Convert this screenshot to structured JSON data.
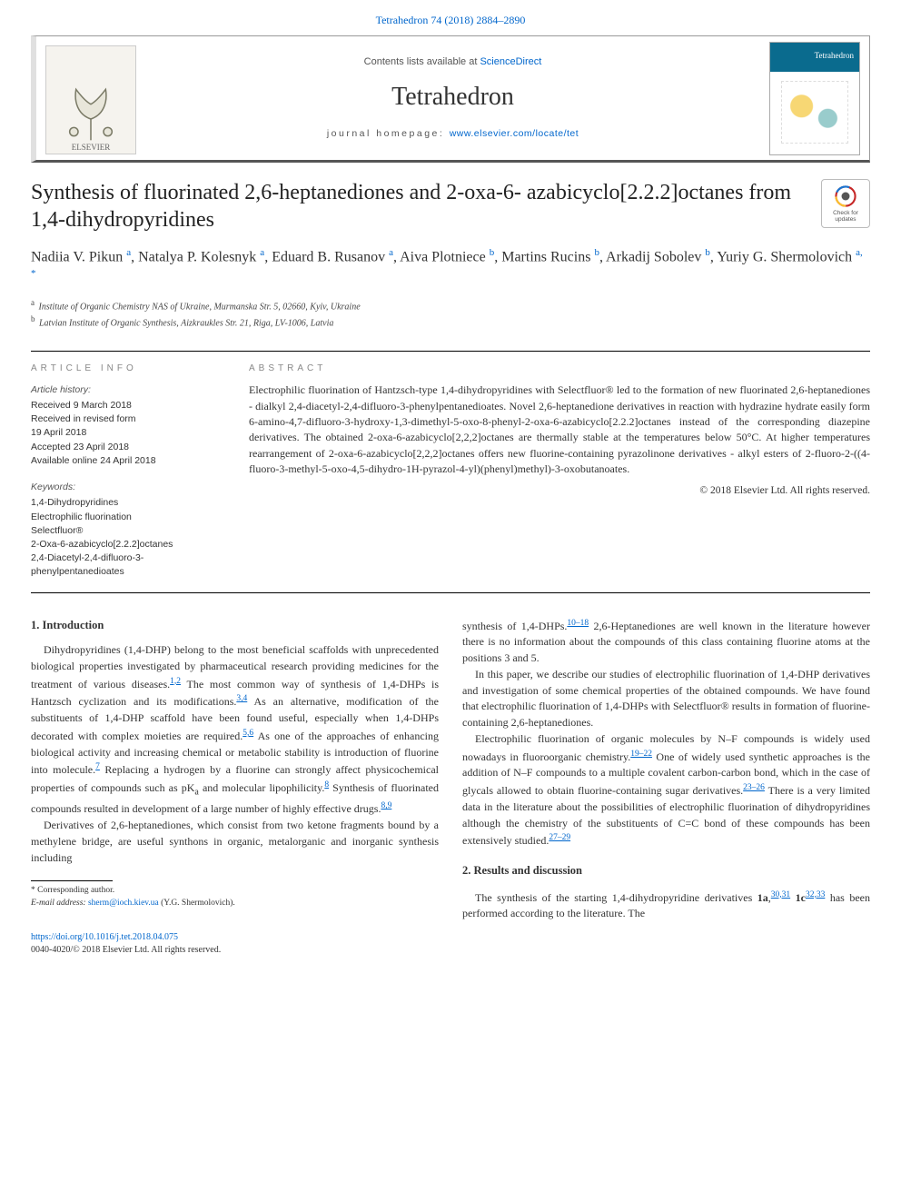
{
  "colors": {
    "link": "#0066cc",
    "text": "#333333",
    "rule": "#000000",
    "header_border_left": "#e0e0e0",
    "header_border_bottom": "#555555",
    "cover_blue": "#0a6b8e",
    "background": "#ffffff"
  },
  "typography": {
    "body_font": "Georgia, 'Times New Roman', serif",
    "sans_font": "Arial, sans-serif",
    "body_size_pt": 9,
    "title_size_pt": 18,
    "author_size_pt": 12,
    "abstract_size_pt": 9
  },
  "journal_ref": {
    "text": "Tetrahedron 74 (2018) 2884–2890",
    "href": "#"
  },
  "header": {
    "contents_prefix": "Contents lists available at ",
    "contents_link": "ScienceDirect",
    "journal_title": "Tetrahedron",
    "homepage_prefix": "journal homepage: ",
    "homepage_link": "www.elsevier.com/locate/tet",
    "publisher_logo_label": "ELSEVIER",
    "cover_label": "Tetrahedron"
  },
  "crossmark": {
    "label": "Check for updates"
  },
  "article": {
    "title": "Synthesis of fluorinated 2,6-heptanediones and 2-oxa-6- azabicyclo[2.2.2]octanes from 1,4-dihydropyridines"
  },
  "authors_html": "Nadiia V. Pikun <a class='aff' href='#'>a</a>, Natalya P. Kolesnyk <a class='aff' href='#'>a</a>, Eduard B. Rusanov <a class='aff' href='#'>a</a>, Aiva Plotniece <a class='aff' href='#'>b</a>, Martins Rucins <a class='aff' href='#'>b</a>, Arkadij Sobolev <a class='aff' href='#'>b</a>, Yuriy G. Shermolovich <a class='aff' href='#'>a,</a> <a class='corr' href='#'>*</a>",
  "affiliations": [
    {
      "sup": "a",
      "text": "Institute of Organic Chemistry NAS of Ukraine, Murmanska Str. 5, 02660, Kyiv, Ukraine"
    },
    {
      "sup": "b",
      "text": "Latvian Institute of Organic Synthesis, Aizkraukles Str. 21, Riga, LV-1006, Latvia"
    }
  ],
  "info": {
    "label": "ARTICLE INFO",
    "history_head": "Article history:",
    "history": [
      "Received 9 March 2018",
      "Received in revised form",
      "19 April 2018",
      "Accepted 23 April 2018",
      "Available online 24 April 2018"
    ],
    "keywords_head": "Keywords:",
    "keywords": [
      "1,4-Dihydropyridines",
      "Electrophilic fluorination",
      "Selectfluor®",
      "2-Oxa-6-azabicyclo[2.2.2]octanes",
      "2,4-Diacetyl-2,4-difluoro-3-phenylpentanedioates"
    ]
  },
  "abstract": {
    "label": "ABSTRACT",
    "text": "Electrophilic fluorination of Hantzsch-type 1,4-dihydropyridines with Selectfluor® led to the formation of new fluorinated 2,6-heptanediones - dialkyl 2,4-diacetyl-2,4-difluoro-3-phenylpentanedioates. Novel 2,6-heptanedione derivatives in reaction with hydrazine hydrate easily form 6-amino-4,7-difluoro-3-hydroxy-1,3-dimethyl-5-oxo-8-phenyl-2-oxa-6-azabicyclo[2.2.2]octanes instead of the corresponding diazepine derivatives. The obtained 2-oxa-6-azabicyclo[2,2,2]octanes are thermally stable at the temperatures below 50°C. At higher temperatures rearrangement of 2-oxa-6-azabicyclo[2,2,2]octanes offers new fluorine-containing pyrazolinone derivatives - alkyl esters of 2-fluoro-2-((4-fluoro-3-methyl-5-oxo-4,5-dihydro-1H-pyrazol-4-yl)(phenyl)methyl)-3-oxobutanoates.",
    "copyright": "© 2018 Elsevier Ltd. All rights reserved."
  },
  "sections": {
    "intro_head": "1. Introduction",
    "results_head": "2. Results and discussion",
    "left_paras": [
      "Dihydropyridines (1,4-DHP) belong to the most beneficial scaffolds with unprecedented biological properties investigated by pharmaceutical research providing medicines for the treatment of various diseases.<a class='ref' href='#'>1,2</a> The most common way of synthesis of 1,4-DHPs is Hantzsch cyclization and its modifications.<a class='ref' href='#'>3,4</a> As an alternative, modification of the substituents of 1,4-DHP scaffold have been found useful, especially when 1,4-DHPs decorated with complex moieties are required.<a class='ref' href='#'>5,6</a> As one of the approaches of enhancing biological activity and increasing chemical or metabolic stability is introduction of fluorine into molecule.<a class='ref' href='#'>7</a> Replacing a hydrogen by a fluorine can strongly affect physicochemical properties of compounds such as pK<sub>a</sub> and molecular lipophilicity.<a class='ref' href='#'>8</a> Synthesis of fluorinated compounds resulted in development of a large number of highly effective drugs.<a class='ref' href='#'>8,9</a>",
      "Derivatives of 2,6-heptanediones, which consist from two ketone fragments bound by a methylene bridge, are useful synthons in organic, metalorganic and inorganic synthesis including"
    ],
    "right_paras": [
      "synthesis of 1,4-DHPs.<a class='ref' href='#'>10–18</a> 2,6-Heptanediones are well known in the literature however there is no information about the compounds of this class containing fluorine atoms at the positions 3 and 5.",
      "In this paper, we describe our studies of electrophilic fluorination of 1,4-DHP derivatives and investigation of some chemical properties of the obtained compounds. We have found that electrophilic fluorination of 1,4-DHPs with Selectfluor® results in formation of fluorine-containing 2,6-heptanediones.",
      "Electrophilic fluorination of organic molecules by N–F compounds is widely used nowadays in fluoroorganic chemistry.<a class='ref' href='#'>19–22</a> One of widely used synthetic approaches is the addition of N–F compounds to a multiple covalent carbon-carbon bond, which in the case of glycals allowed to obtain fluorine-containing sugar derivatives.<a class='ref' href='#'>23–26</a> There is a very limited data in the literature about the possibilities of electrophilic fluorination of dihydropyridines although the chemistry of the substituents of C=C bond of these compounds has been extensively studied.<a class='ref' href='#'>27–29</a>"
    ],
    "results_para": "The synthesis of the starting 1,4-dihydropyridine derivatives <b>1a</b>,<a class='ref' href='#'>30,31</a> <b>1c</b><a class='ref' href='#'>32,33</a> has been performed according to the literature. The"
  },
  "footnote": {
    "corr_label": "* Corresponding author.",
    "email_label": "E-mail address:",
    "email": "sherm@ioch.kiev.ua",
    "email_person": "(Y.G. Shermolovich)."
  },
  "doi": {
    "link": "https://doi.org/10.1016/j.tet.2018.04.075",
    "issn_line": "0040-4020/© 2018 Elsevier Ltd. All rights reserved."
  }
}
